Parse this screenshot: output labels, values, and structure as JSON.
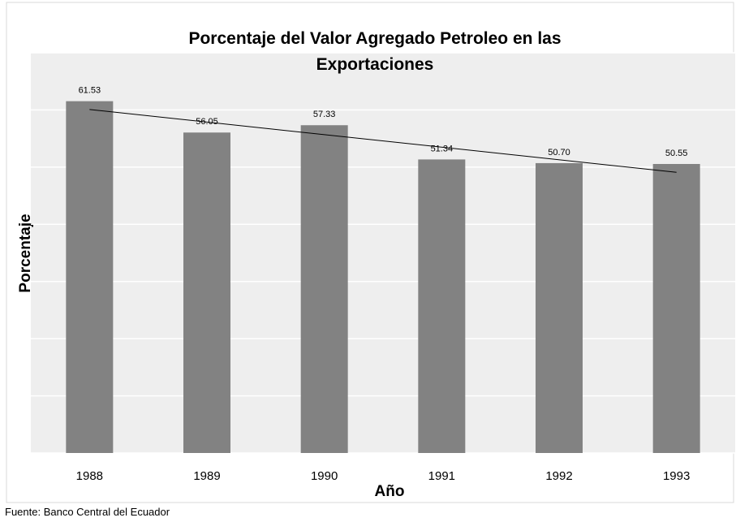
{
  "chart_data": {
    "type": "bar",
    "title": "Porcentaje del Valor Agregado Petroleo en las Exportaciones",
    "x_label": "Año",
    "y_label": "Porcentaje",
    "categories": [
      "1988",
      "1989",
      "1990",
      "1991",
      "1992",
      "1993"
    ],
    "values": [
      61.53,
      56.05,
      57.33,
      51.34,
      50.7,
      50.55
    ],
    "value_labels": [
      "61.53",
      "56.05",
      "57.33",
      "51.34",
      "50.70",
      "50.55"
    ],
    "color": "#828282",
    "ylim": [
      0,
      70
    ],
    "yticks": [
      0,
      10,
      20,
      30,
      40,
      50,
      60,
      70
    ],
    "grid": true,
    "trendline": "linear",
    "source": "Fuente: Banco Central del Ecuador"
  }
}
